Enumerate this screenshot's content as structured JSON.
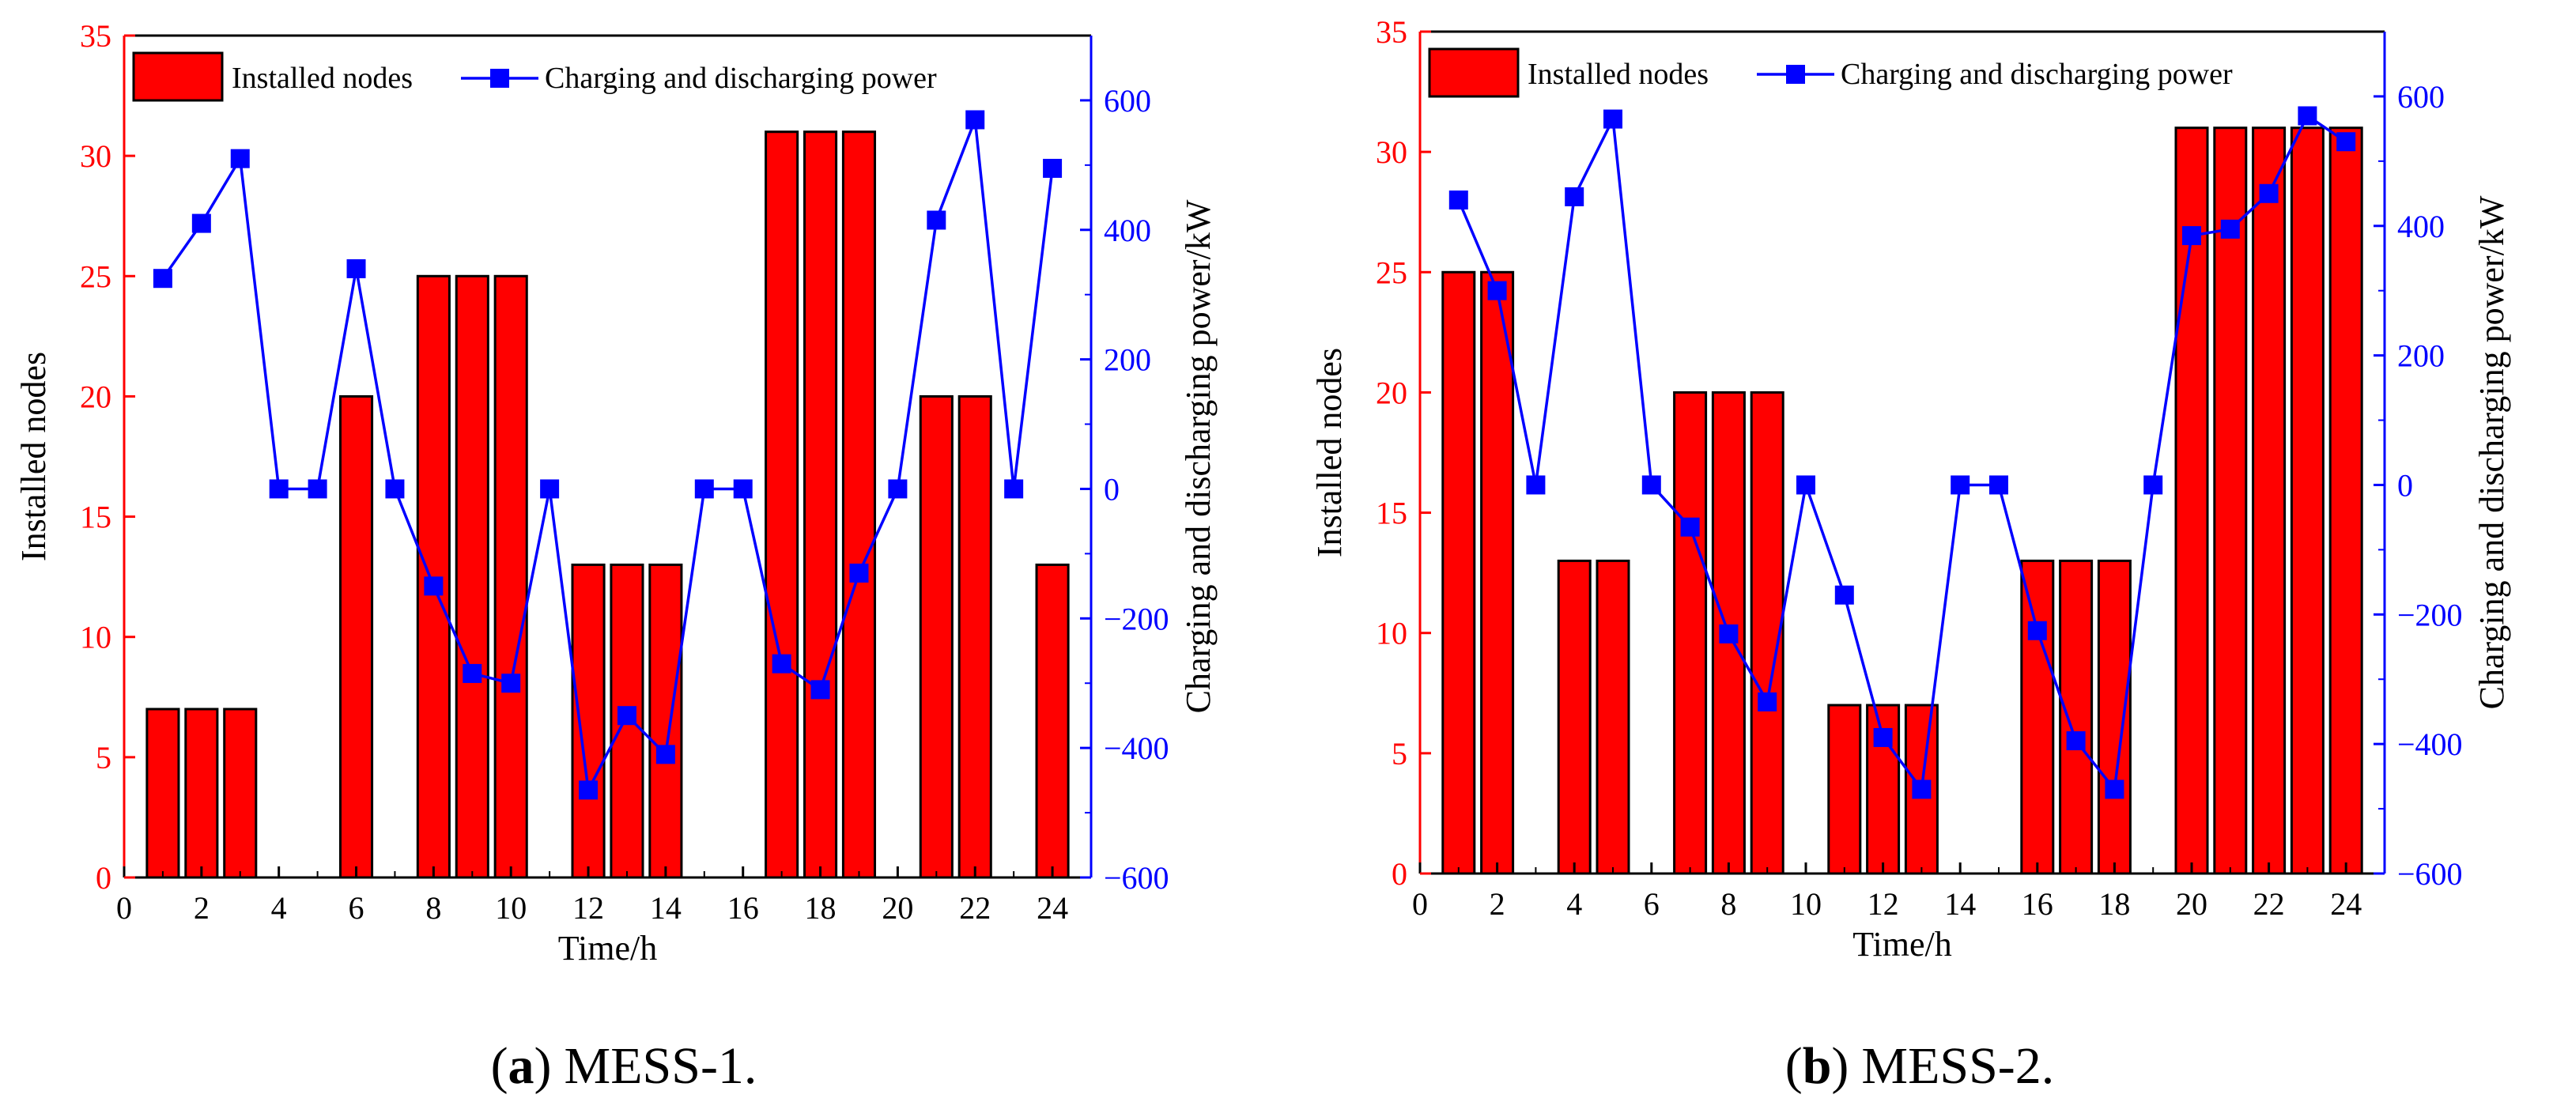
{
  "colors": {
    "bar": "#ff0000",
    "line": "#0000ff",
    "left_axis": "#ff0000",
    "right_axis": "#0000ff",
    "axis": "#000000"
  },
  "chart_data": [
    {
      "type": "bar+line",
      "caption_letter": "a",
      "caption_text": "MESS-1.",
      "caption_open": "(",
      "caption_close": ")",
      "xlabel": "Time/h",
      "ylabel_left": "Installed nodes",
      "ylabel_right": "Charging and discharging power/kW",
      "xlim": [
        0,
        25
      ],
      "ylim_left": [
        0,
        35
      ],
      "ylim_right": [
        -600,
        700
      ],
      "x_ticks": [
        "0",
        "2",
        "4",
        "6",
        "8",
        "10",
        "12",
        "14",
        "16",
        "18",
        "20",
        "22",
        "24"
      ],
      "y_left_ticks": [
        "0",
        "5",
        "10",
        "15",
        "20",
        "25",
        "30",
        "35"
      ],
      "y_right_ticks": [
        "-600",
        "-400",
        "-200",
        "0",
        "200",
        "400",
        "600"
      ],
      "legend": [
        "Installed nodes",
        "Charging and discharging power"
      ],
      "hours": [
        1,
        2,
        3,
        4,
        5,
        6,
        7,
        8,
        9,
        10,
        11,
        12,
        13,
        14,
        15,
        16,
        17,
        18,
        19,
        20,
        21,
        22,
        23,
        24
      ],
      "installed_nodes": [
        7,
        7,
        7,
        0,
        0,
        20,
        0,
        25,
        25,
        25,
        0,
        13,
        13,
        13,
        0,
        0,
        31,
        31,
        31,
        0,
        20,
        20,
        0,
        13
      ],
      "power_kw": [
        325,
        410,
        510,
        0,
        0,
        340,
        0,
        -150,
        -285,
        -300,
        0,
        -465,
        -350,
        -410,
        0,
        0,
        -270,
        -310,
        -130,
        0,
        415,
        570,
        0,
        495
      ]
    },
    {
      "type": "bar+line",
      "caption_letter": "b",
      "caption_text": "MESS-2.",
      "caption_open": "(",
      "caption_close": ")",
      "xlabel": "Time/h",
      "ylabel_left": "Installed nodes",
      "ylabel_right": "Charging and discharging power/kW",
      "xlim": [
        0,
        25
      ],
      "ylim_left": [
        0,
        35
      ],
      "ylim_right": [
        -600,
        700
      ],
      "x_ticks": [
        "0",
        "2",
        "4",
        "6",
        "8",
        "10",
        "12",
        "14",
        "16",
        "18",
        "20",
        "22",
        "24"
      ],
      "y_left_ticks": [
        "0",
        "5",
        "10",
        "15",
        "20",
        "25",
        "30",
        "35"
      ],
      "y_right_ticks": [
        "-600",
        "-400",
        "-200",
        "0",
        "200",
        "400",
        "600"
      ],
      "legend": [
        "Installed nodes",
        "Charging and discharging power"
      ],
      "hours": [
        1,
        2,
        3,
        4,
        5,
        6,
        7,
        8,
        9,
        10,
        11,
        12,
        13,
        14,
        15,
        16,
        17,
        18,
        19,
        20,
        21,
        22,
        23,
        24
      ],
      "installed_nodes": [
        25,
        25,
        0,
        13,
        13,
        0,
        20,
        20,
        20,
        0,
        7,
        7,
        7,
        0,
        0,
        13,
        13,
        13,
        0,
        31,
        31,
        31,
        31,
        31
      ],
      "power_kw": [
        440,
        300,
        0,
        445,
        565,
        0,
        -65,
        -230,
        -335,
        0,
        -170,
        -390,
        -470,
        0,
        0,
        -225,
        -395,
        -470,
        0,
        385,
        395,
        450,
        570,
        530
      ]
    }
  ]
}
